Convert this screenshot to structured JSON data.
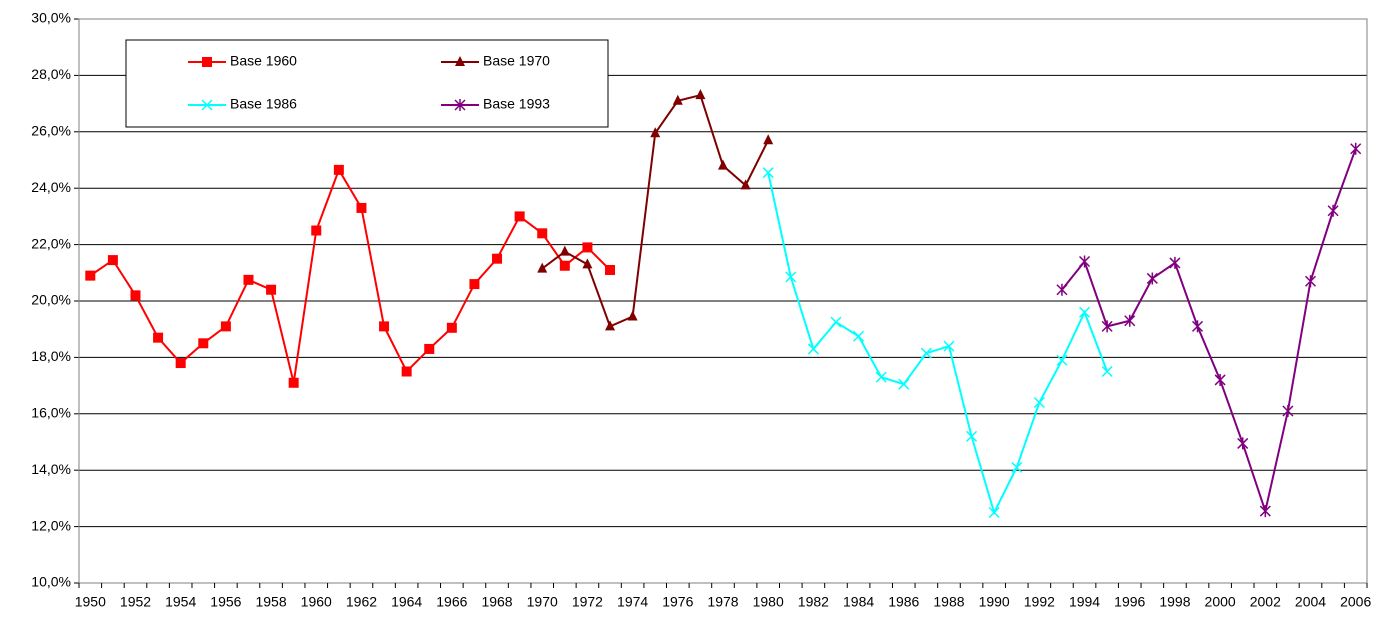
{
  "chart_data": {
    "type": "line",
    "categories": [
      "1950",
      null,
      "1952",
      null,
      "1954",
      null,
      "1956",
      null,
      "1958",
      null,
      "1960",
      null,
      "1962",
      null,
      "1964",
      null,
      "1966",
      null,
      "1968",
      null,
      "1970",
      null,
      "1972",
      null,
      "1974",
      null,
      "1976",
      null,
      "1978",
      null,
      "1980",
      null,
      "1982",
      null,
      "1984",
      null,
      "1986",
      null,
      "1988",
      null,
      "1990",
      null,
      "1992",
      null,
      "1994",
      null,
      "1996",
      null,
      "1998",
      null,
      "2000",
      null,
      "2002",
      null,
      "2004",
      null,
      "2006"
    ],
    "series": [
      {
        "name": "Base 1960",
        "color": "#ff0000",
        "marker": "square",
        "values": [
          20.9,
          21.45,
          20.2,
          18.7,
          17.8,
          18.5,
          19.1,
          20.75,
          20.4,
          17.1,
          22.5,
          24.65,
          23.3,
          19.1,
          17.5,
          18.3,
          19.05,
          20.6,
          21.5,
          23.0,
          22.4,
          21.25,
          21.9,
          21.1,
          null,
          null,
          null,
          null,
          null,
          null,
          null,
          null,
          null,
          null,
          null,
          null,
          null,
          null,
          null,
          null,
          null,
          null,
          null,
          null,
          null,
          null,
          null,
          null,
          null,
          null,
          null,
          null,
          null,
          null,
          null,
          null,
          null
        ]
      },
      {
        "name": "Base 1970",
        "color": "#800000",
        "marker": "triangle",
        "values": [
          null,
          null,
          null,
          null,
          null,
          null,
          null,
          null,
          null,
          null,
          null,
          null,
          null,
          null,
          null,
          null,
          null,
          null,
          null,
          null,
          21.15,
          21.75,
          21.3,
          19.1,
          19.45,
          25.95,
          27.1,
          27.3,
          24.8,
          24.1,
          25.7,
          null,
          null,
          null,
          null,
          null,
          null,
          null,
          null,
          null,
          null,
          null,
          null,
          null,
          null,
          null,
          null,
          null,
          null,
          null,
          null,
          null,
          null,
          null,
          null,
          null,
          null
        ]
      },
      {
        "name": "Base 1986",
        "color": "#00ffff",
        "marker": "x",
        "values": [
          null,
          null,
          null,
          null,
          null,
          null,
          null,
          null,
          null,
          null,
          null,
          null,
          null,
          null,
          null,
          null,
          null,
          null,
          null,
          null,
          null,
          null,
          null,
          null,
          null,
          null,
          null,
          null,
          null,
          null,
          24.55,
          20.85,
          18.3,
          19.25,
          18.75,
          17.3,
          17.05,
          18.15,
          18.4,
          15.2,
          12.5,
          14.1,
          16.4,
          17.9,
          19.6,
          17.5,
          null,
          null,
          null,
          null,
          null,
          null,
          null,
          null,
          null,
          null,
          null
        ]
      },
      {
        "name": "Base 1993",
        "color": "#800080",
        "marker": "star",
        "values": [
          null,
          null,
          null,
          null,
          null,
          null,
          null,
          null,
          null,
          null,
          null,
          null,
          null,
          null,
          null,
          null,
          null,
          null,
          null,
          null,
          null,
          null,
          null,
          null,
          null,
          null,
          null,
          null,
          null,
          null,
          null,
          null,
          null,
          null,
          null,
          null,
          null,
          null,
          null,
          null,
          null,
          null,
          null,
          20.4,
          21.4,
          19.1,
          19.3,
          20.8,
          21.35,
          19.1,
          17.2,
          14.95,
          12.55,
          16.1,
          20.7,
          23.2,
          25.4
        ]
      }
    ],
    "ylim": [
      10,
      30
    ],
    "yticks": [
      {
        "value": 10,
        "label": "10,0%"
      },
      {
        "value": 12,
        "label": "12,0%"
      },
      {
        "value": 14,
        "label": "14,0%"
      },
      {
        "value": 16,
        "label": "16,0%"
      },
      {
        "value": 18,
        "label": "18,0%"
      },
      {
        "value": 20,
        "label": "20,0%"
      },
      {
        "value": 22,
        "label": "22,0%"
      },
      {
        "value": 24,
        "label": "24,0%"
      },
      {
        "value": 26,
        "label": "26,0%"
      },
      {
        "value": 28,
        "label": "28,0%"
      },
      {
        "value": 30,
        "label": "30,0%"
      }
    ],
    "grid": true,
    "legend": "upper left"
  }
}
